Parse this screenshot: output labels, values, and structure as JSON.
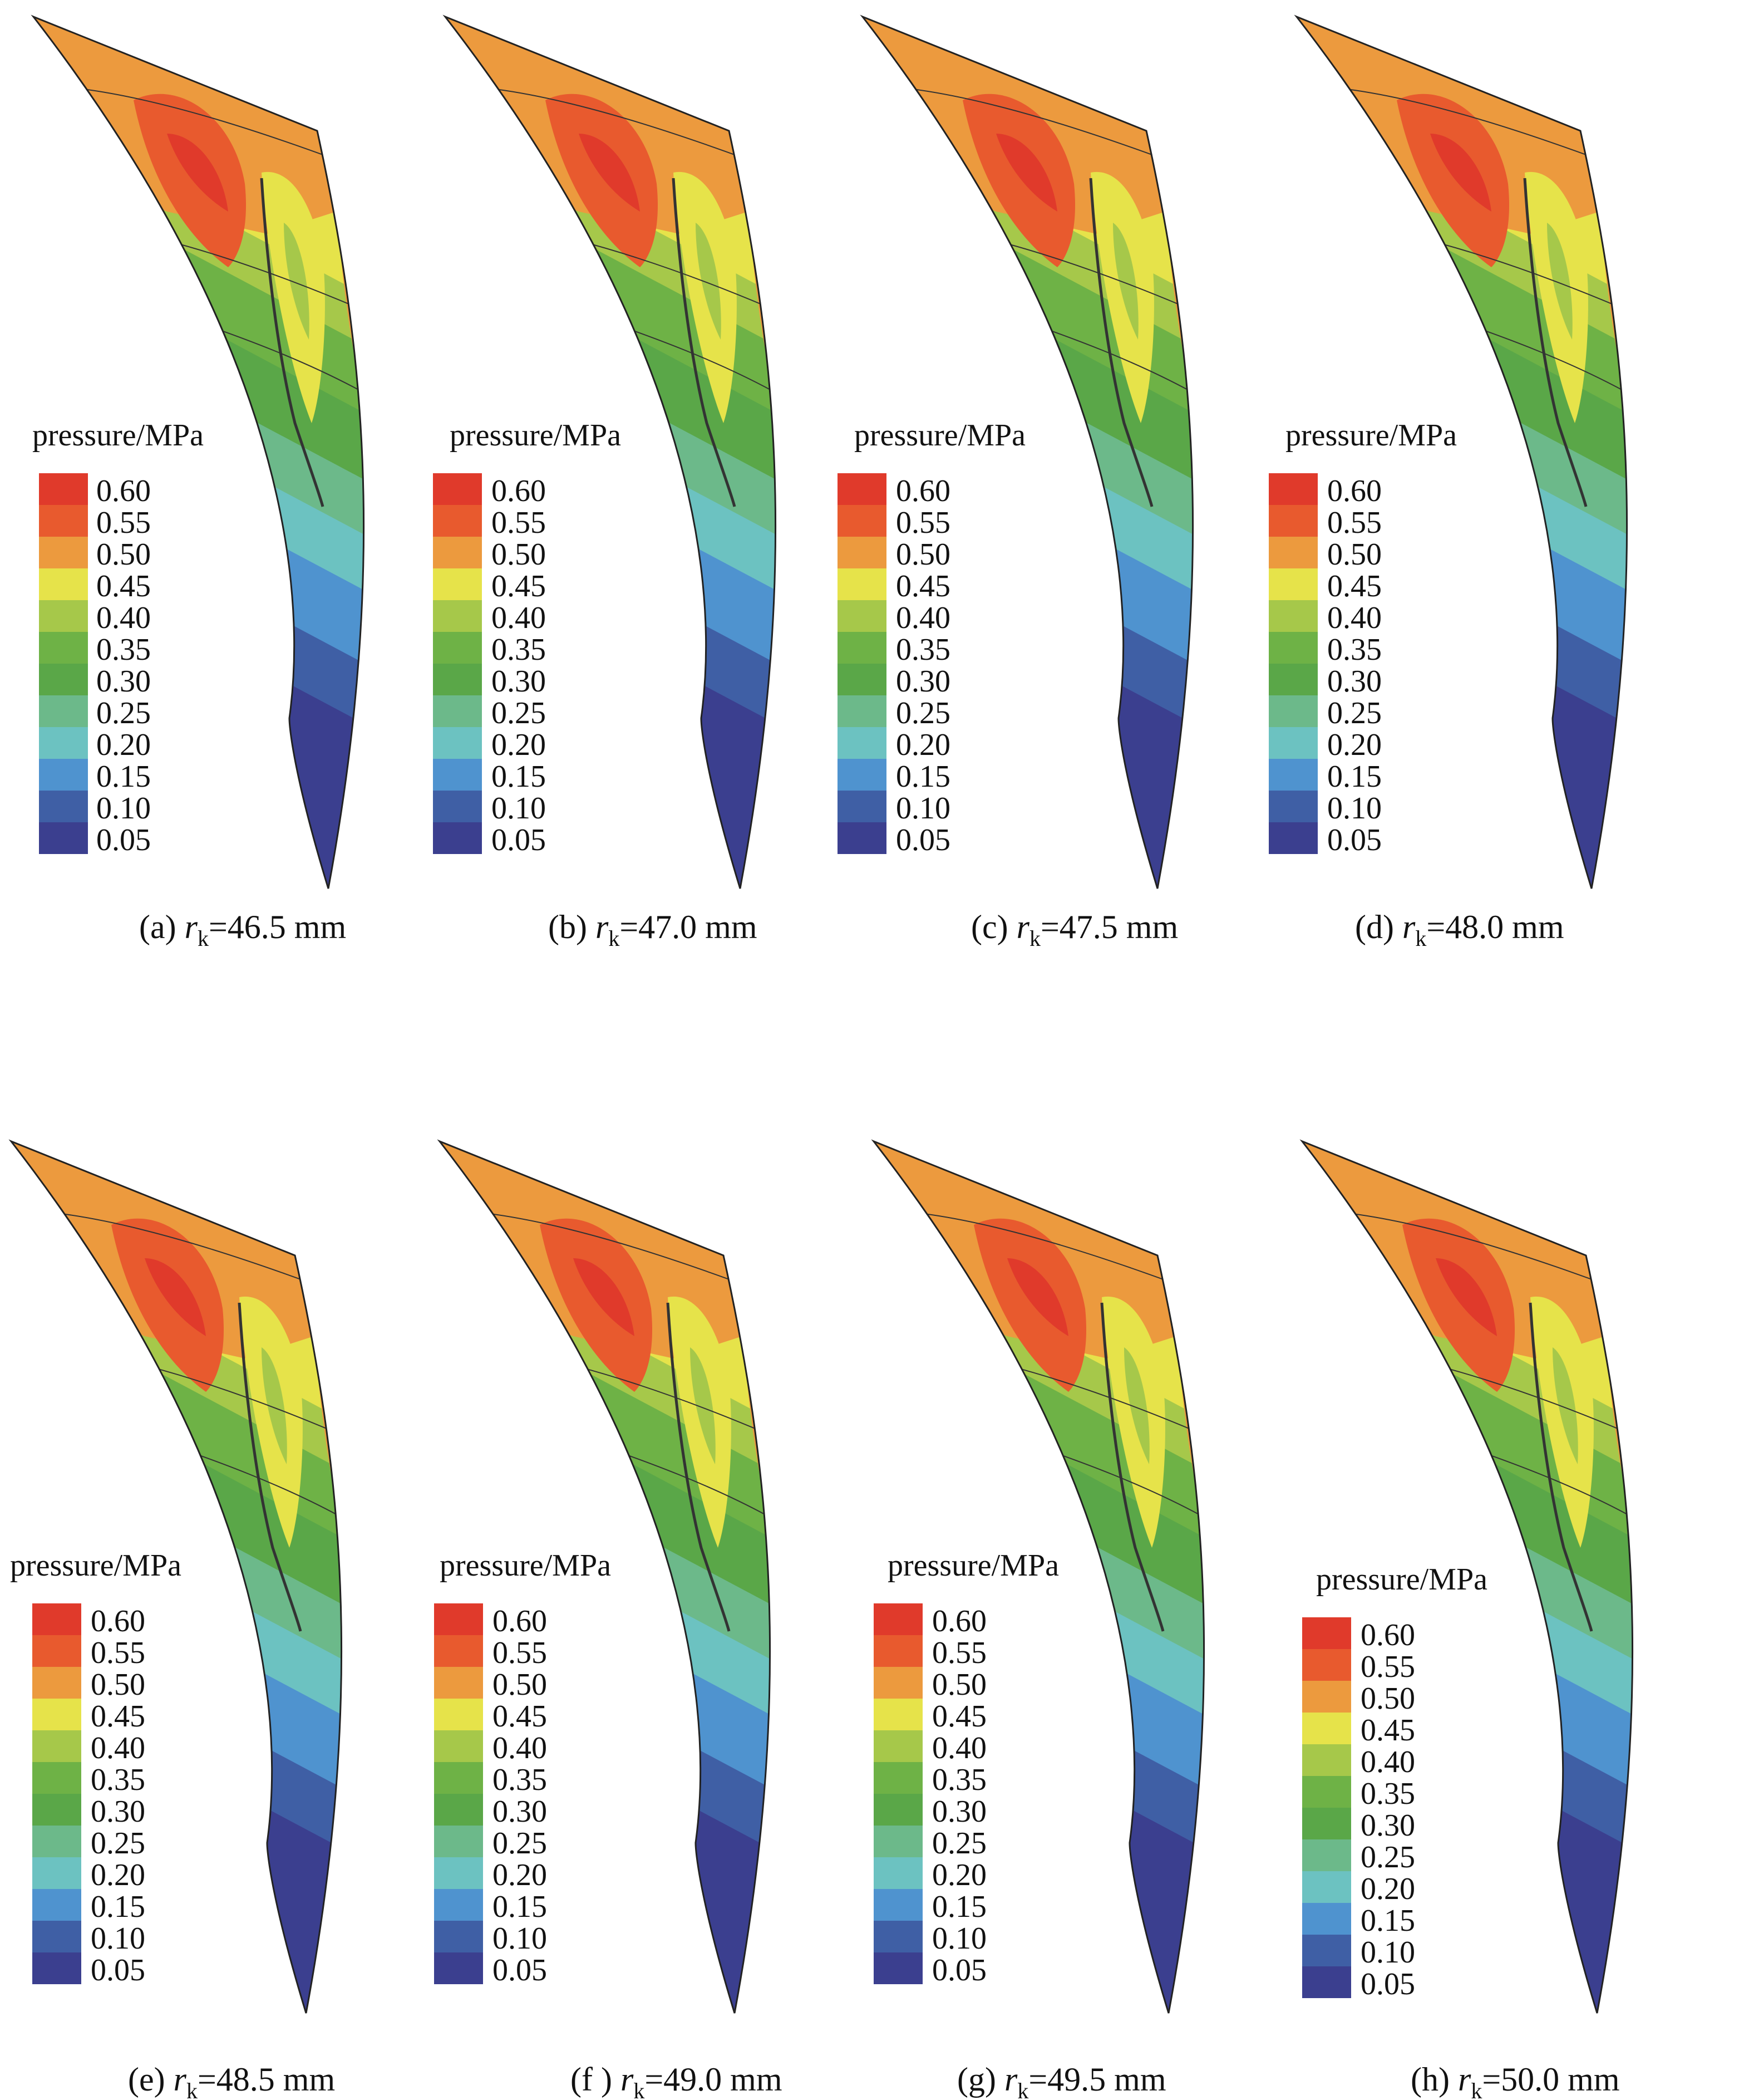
{
  "figure": {
    "legend_title": "pressure/MPa",
    "legend_levels": [
      "0.60",
      "0.55",
      "0.50",
      "0.45",
      "0.40",
      "0.35",
      "0.30",
      "0.25",
      "0.20",
      "0.15",
      "0.10",
      "0.05"
    ],
    "legend_colors": [
      "#e03a2b",
      "#e85a2e",
      "#ec9a3e",
      "#e6e34a",
      "#a6c84a",
      "#6eb246",
      "#5aa748",
      "#6cb98a",
      "#6cc2c1",
      "#4f93cf",
      "#3f5fa5",
      "#3b3f8f"
    ],
    "panels": [
      {
        "id": "a",
        "prefix": "(a) ",
        "var": "r",
        "sub": "k",
        "suffix": "=46.5 mm"
      },
      {
        "id": "b",
        "prefix": "(b) ",
        "var": "r",
        "sub": "k",
        "suffix": "=47.0 mm"
      },
      {
        "id": "c",
        "prefix": "(c) ",
        "var": "r",
        "sub": "k",
        "suffix": "=47.5 mm"
      },
      {
        "id": "d",
        "prefix": "(d) ",
        "var": "r",
        "sub": "k",
        "suffix": "=48.0 mm"
      },
      {
        "id": "e",
        "prefix": "(e) ",
        "var": "r",
        "sub": "k",
        "suffix": "=48.5 mm"
      },
      {
        "id": "f",
        "prefix": "(f ) ",
        "var": "r",
        "sub": "k",
        "suffix": "=49.0 mm"
      },
      {
        "id": "g",
        "prefix": "(g) ",
        "var": "r",
        "sub": "k",
        "suffix": "=49.5 mm"
      },
      {
        "id": "h",
        "prefix": "(h) ",
        "var": "r",
        "sub": "k",
        "suffix": "=50.0 mm"
      }
    ]
  }
}
